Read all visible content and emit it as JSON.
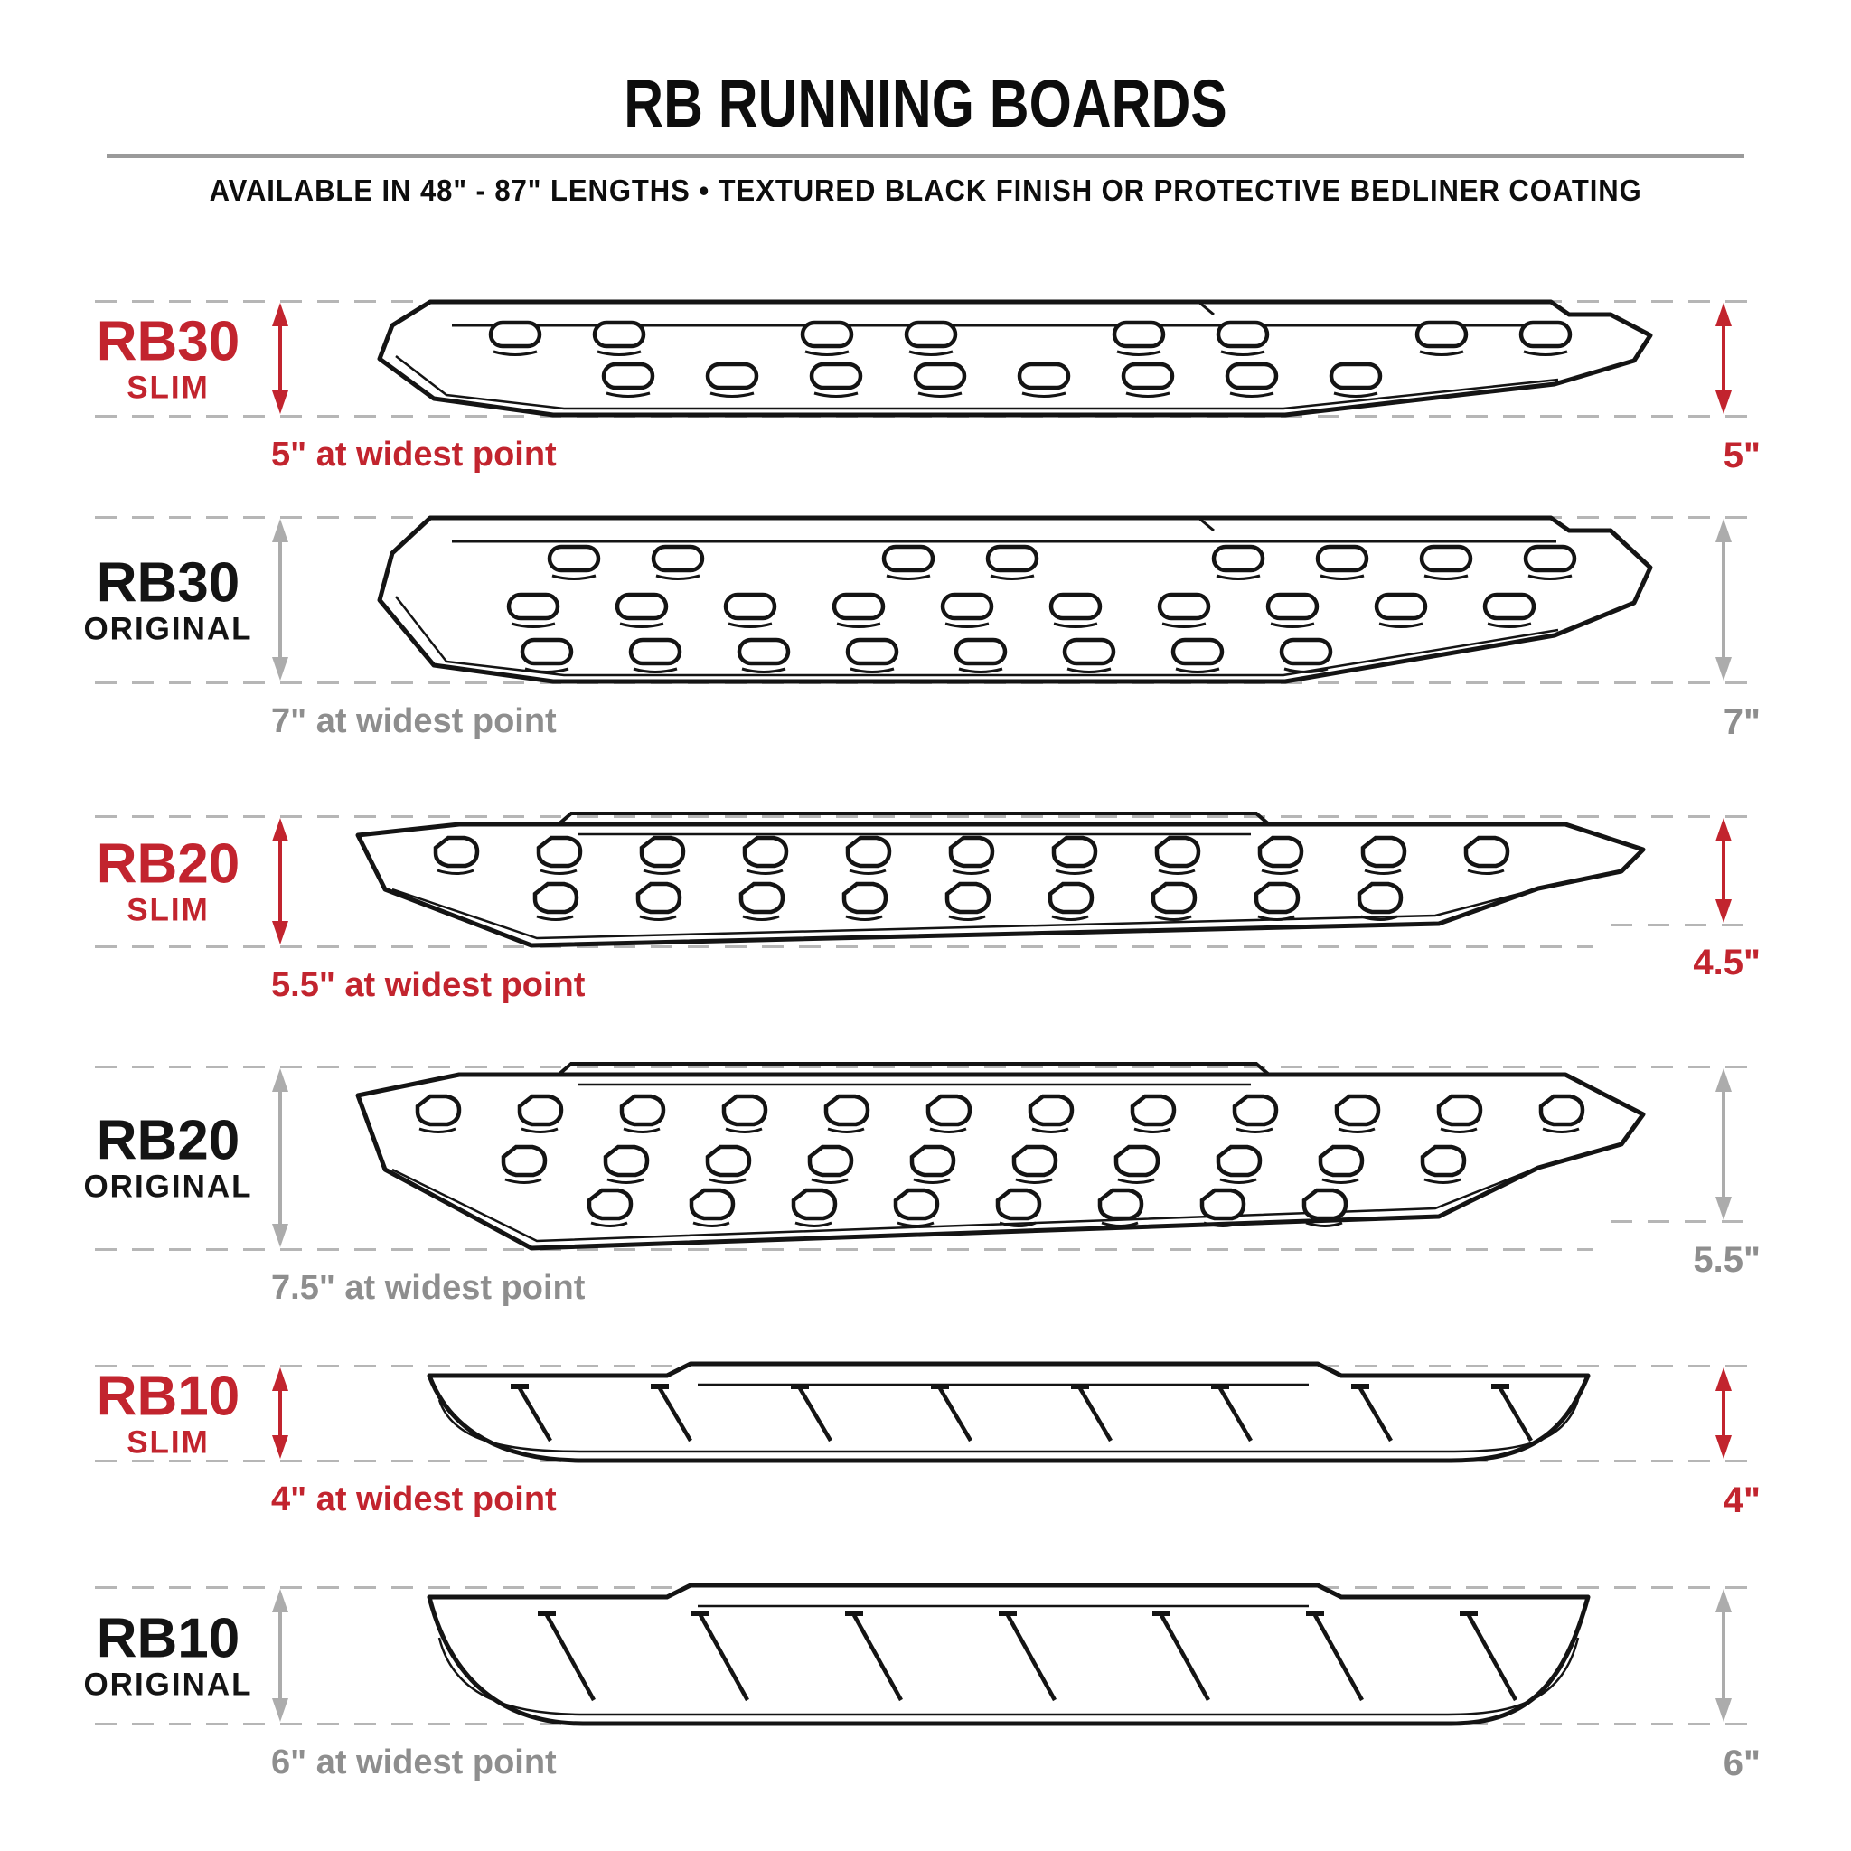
{
  "header": {
    "title": "RB RUNNING BOARDS",
    "subtitle": "AVAILABLE IN 48\" - 87\" LENGTHS  •  TEXTURED BLACK FINISH OR PROTECTIVE BEDLINER COATING"
  },
  "colors": {
    "accent_red": "#C2242E",
    "dim_gray": "#8E8E8E",
    "arrow_gray": "#ACACAC",
    "line_black": "#141414",
    "dash_gray": "#B6B6B6"
  },
  "rows": [
    {
      "model": "RB30",
      "variant": "SLIM",
      "style": "red",
      "board": "rb30-2",
      "width_note": "5\" at widest point",
      "height_label": "5\""
    },
    {
      "model": "RB30",
      "variant": "ORIGINAL",
      "style": "gray",
      "board": "rb30-3",
      "width_note": "7\" at widest point",
      "height_label": "7\""
    },
    {
      "model": "RB20",
      "variant": "SLIM",
      "style": "red",
      "board": "rb20-2",
      "width_note": "5.5\" at widest point",
      "height_label": "4.5\""
    },
    {
      "model": "RB20",
      "variant": "ORIGINAL",
      "style": "gray",
      "board": "rb20-3",
      "width_note": "7.5\" at widest point",
      "height_label": "5.5\""
    },
    {
      "model": "RB10",
      "variant": "SLIM",
      "style": "red",
      "board": "rb10-8",
      "width_note": "4\" at widest point",
      "height_label": "4\""
    },
    {
      "model": "RB10",
      "variant": "ORIGINAL",
      "style": "gray",
      "board": "rb10-7",
      "width_note": "6\" at widest point",
      "height_label": "6\""
    }
  ]
}
